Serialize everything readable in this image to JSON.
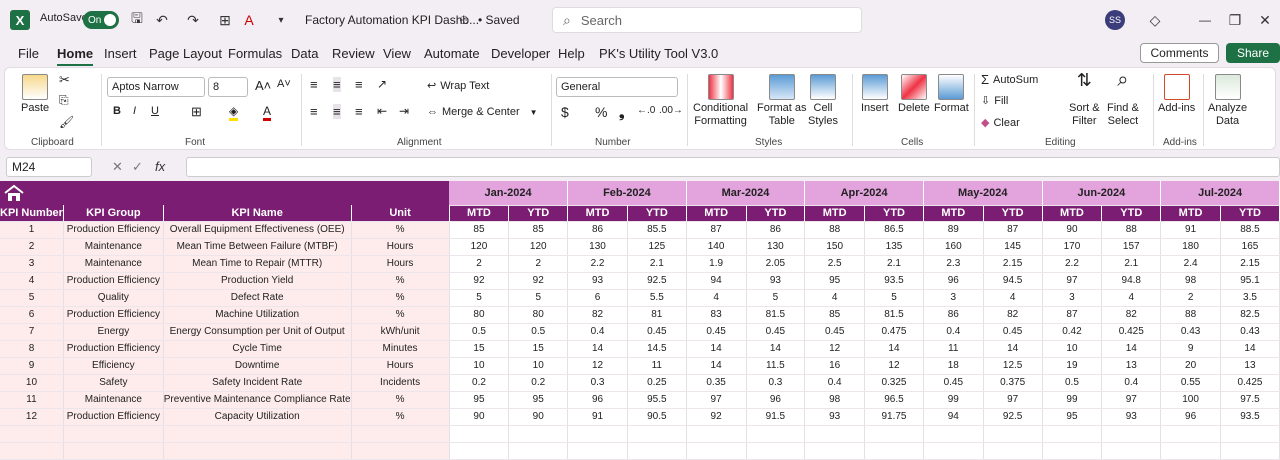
{
  "titlebar": {
    "autosave": "AutoSave",
    "toggle": "On",
    "doc_title": "Factory Automation KPI Dashb...",
    "saved": "• Saved",
    "search_placeholder": "Search",
    "avatar": "SS"
  },
  "menu": [
    "File",
    "Home",
    "Insert",
    "Page Layout",
    "Formulas",
    "Data",
    "Review",
    "View",
    "Automate",
    "Developer",
    "Help",
    "PK's Utility Tool V3.0"
  ],
  "buttons": {
    "comments": "Comments",
    "share": "Share"
  },
  "ribbon": {
    "clipboard": {
      "paste": "Paste",
      "label": "Clipboard"
    },
    "font": {
      "name": "Aptos Narrow",
      "size": "8",
      "label": "Font"
    },
    "alignment": {
      "wrap": "Wrap Text",
      "merge": "Merge & Center",
      "label": "Alignment"
    },
    "number": {
      "format": "General",
      "label": "Number"
    },
    "styles": {
      "cond1": "Conditional",
      "cond2": "Formatting",
      "fmt1": "Format as",
      "fmt2": "Table",
      "cell1": "Cell",
      "cell2": "Styles",
      "label": "Styles"
    },
    "cells": {
      "insert": "Insert",
      "delete": "Delete",
      "format": "Format",
      "label": "Cells"
    },
    "editing": {
      "autosum": "AutoSum",
      "fill": "Fill",
      "clear": "Clear",
      "sort1": "Sort &",
      "sort2": "Filter",
      "find1": "Find &",
      "find2": "Select",
      "label": "Editing"
    },
    "addins": {
      "addins": "Add-ins",
      "label": "Add-ins"
    },
    "analyze": {
      "l1": "Analyze",
      "l2": "Data"
    }
  },
  "formula": {
    "cell": "M24",
    "fx": "fx"
  },
  "colors": {
    "banner": "#7b1e73",
    "month": "#e3a3dd",
    "light": "#fdeceb",
    "green": "#1e7145"
  },
  "table": {
    "months": [
      "Jan-2024",
      "Feb-2024",
      "Mar-2024",
      "Apr-2024",
      "May-2024",
      "Jun-2024",
      "Jul-2024"
    ],
    "headers": [
      "KPI Number",
      "KPI Group",
      "KPI Name",
      "Unit"
    ],
    "sub": [
      "MTD",
      "YTD"
    ],
    "rows": [
      [
        "1",
        "Production Efficiency",
        "Overall Equipment Effectiveness (OEE)",
        "%",
        "85",
        "85",
        "86",
        "85.5",
        "87",
        "86",
        "88",
        "86.5",
        "89",
        "87",
        "90",
        "88",
        "91",
        "88.5"
      ],
      [
        "2",
        "Maintenance",
        "Mean Time Between Failure (MTBF)",
        "Hours",
        "120",
        "120",
        "130",
        "125",
        "140",
        "130",
        "150",
        "135",
        "160",
        "145",
        "170",
        "157",
        "180",
        "165"
      ],
      [
        "3",
        "Maintenance",
        "Mean Time to Repair (MTTR)",
        "Hours",
        "2",
        "2",
        "2.2",
        "2.1",
        "1.9",
        "2.05",
        "2.5",
        "2.1",
        "2.3",
        "2.15",
        "2.2",
        "2.1",
        "2.4",
        "2.15"
      ],
      [
        "4",
        "Production Efficiency",
        "Production Yield",
        "%",
        "92",
        "92",
        "93",
        "92.5",
        "94",
        "93",
        "95",
        "93.5",
        "96",
        "94.5",
        "97",
        "94.8",
        "98",
        "95.1"
      ],
      [
        "5",
        "Quality",
        "Defect Rate",
        "%",
        "5",
        "5",
        "6",
        "5.5",
        "4",
        "5",
        "4",
        "5",
        "3",
        "4",
        "3",
        "4",
        "2",
        "3.5"
      ],
      [
        "6",
        "Production Efficiency",
        "Machine Utilization",
        "%",
        "80",
        "80",
        "82",
        "81",
        "83",
        "81.5",
        "85",
        "81.5",
        "86",
        "82",
        "87",
        "82",
        "88",
        "82.5"
      ],
      [
        "7",
        "Energy",
        "Energy Consumption per Unit of Output",
        "kWh/unit",
        "0.5",
        "0.5",
        "0.4",
        "0.45",
        "0.45",
        "0.45",
        "0.45",
        "0.475",
        "0.4",
        "0.45",
        "0.42",
        "0.425",
        "0.43",
        "0.43"
      ],
      [
        "8",
        "Production Efficiency",
        "Cycle Time",
        "Minutes",
        "15",
        "15",
        "14",
        "14.5",
        "14",
        "14",
        "12",
        "14",
        "11",
        "14",
        "10",
        "14",
        "9",
        "14"
      ],
      [
        "9",
        "Efficiency",
        "Downtime",
        "Hours",
        "10",
        "10",
        "12",
        "11",
        "14",
        "11.5",
        "16",
        "12",
        "18",
        "12.5",
        "19",
        "13",
        "20",
        "13"
      ],
      [
        "10",
        "Safety",
        "Safety Incident Rate",
        "Incidents",
        "0.2",
        "0.2",
        "0.3",
        "0.25",
        "0.35",
        "0.3",
        "0.4",
        "0.325",
        "0.45",
        "0.375",
        "0.5",
        "0.4",
        "0.55",
        "0.425"
      ],
      [
        "11",
        "Maintenance",
        "Preventive Maintenance Compliance Rate",
        "%",
        "95",
        "95",
        "96",
        "95.5",
        "97",
        "96",
        "98",
        "96.5",
        "99",
        "97",
        "99",
        "97",
        "100",
        "97.5"
      ],
      [
        "12",
        "Production Efficiency",
        "Capacity Utilization",
        "%",
        "90",
        "90",
        "91",
        "90.5",
        "92",
        "91.5",
        "93",
        "91.75",
        "94",
        "92.5",
        "95",
        "93",
        "96",
        "93.5"
      ]
    ]
  }
}
